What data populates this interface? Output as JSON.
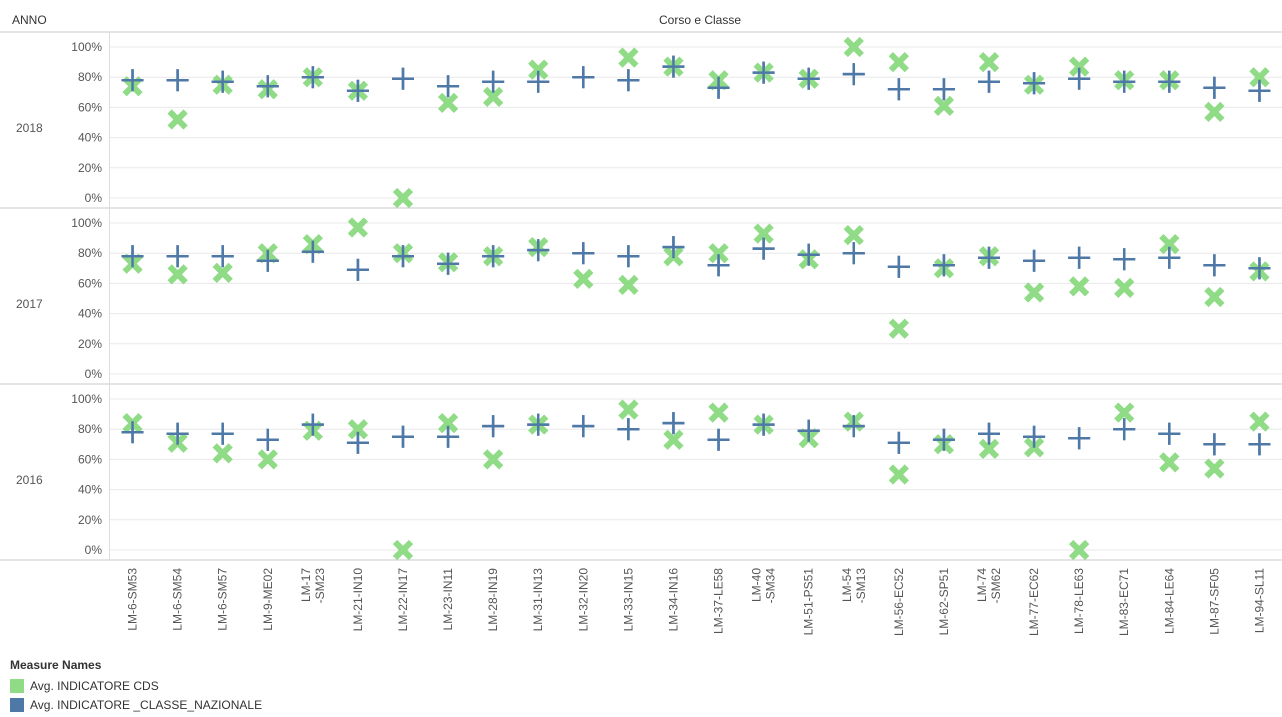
{
  "header": {
    "row_dimension_label": "ANNO",
    "column_dimension_label": "Corso e Classe"
  },
  "colors": {
    "cds": "#8fdb86",
    "classe_nazionale": "#4e79a7",
    "grid": "#e8e8e8",
    "separator": "#c9c9c9"
  },
  "legend": {
    "title": "Measure Names",
    "items": [
      {
        "label": "Avg. INDICATORE CDS",
        "color": "#8fdb86",
        "marker": "cross-x"
      },
      {
        "label": "Avg. INDICATORE _CLASSE_NAZIONALE",
        "color": "#4e79a7",
        "marker": "plus"
      }
    ]
  },
  "chart_data": {
    "type": "scatter",
    "title": "Corso e Classe",
    "row_field": "ANNO",
    "ylim": [
      0,
      100
    ],
    "yticks": [
      "0%",
      "20%",
      "40%",
      "60%",
      "80%",
      "100%"
    ],
    "ytick_values": [
      0,
      20,
      40,
      60,
      80,
      100
    ],
    "categories": [
      [
        "LM-6-SM53"
      ],
      [
        "LM-6-SM54"
      ],
      [
        "LM-6-SM57"
      ],
      [
        "LM-9-ME02"
      ],
      [
        "LM-17",
        "-SM23"
      ],
      [
        "LM-21-IN10"
      ],
      [
        "LM-22-IN17"
      ],
      [
        "LM-23-IN11"
      ],
      [
        "LM-28-IN19"
      ],
      [
        "LM-31-IN13"
      ],
      [
        "LM-32-IN20"
      ],
      [
        "LM-33-IN15"
      ],
      [
        "LM-34-IN16"
      ],
      [
        "LM-37-LE58"
      ],
      [
        "LM-40",
        "-SM34"
      ],
      [
        "LM-51-PS51"
      ],
      [
        "LM-54",
        "-SM13"
      ],
      [
        "LM-56-EC52"
      ],
      [
        "LM-62-SP51"
      ],
      [
        "LM-74",
        "-SM62"
      ],
      [
        "LM-77-EC62"
      ],
      [
        "LM-78-LE63"
      ],
      [
        "LM-83-EC71"
      ],
      [
        "LM-84-LE64"
      ],
      [
        "LM-87-SF05"
      ],
      [
        "LM-94-SL11"
      ]
    ],
    "panels": [
      {
        "year": "2018",
        "series": [
          {
            "name": "Avg. INDICATORE CDS",
            "values": [
              74,
              52,
              75,
              72,
              80,
              71,
              0,
              63,
              67,
              85,
              null,
              93,
              87,
              78,
              83,
              79,
              100,
              90,
              61,
              90,
              75,
              87,
              78,
              78,
              57,
              80
            ]
          },
          {
            "name": "Avg. INDICATORE _CLASSE_NAZIONALE",
            "values": [
              78,
              78,
              77,
              74,
              80,
              71,
              79,
              74,
              77,
              77,
              80,
              78,
              87,
              73,
              83,
              79,
              82,
              72,
              72,
              77,
              76,
              79,
              77,
              77,
              73,
              71
            ]
          }
        ]
      },
      {
        "year": "2017",
        "series": [
          {
            "name": "Avg. INDICATORE CDS",
            "values": [
              73,
              66,
              67,
              80,
              86,
              97,
              80,
              74,
              78,
              84,
              63,
              59,
              78,
              80,
              93,
              76,
              92,
              30,
              70,
              78,
              54,
              58,
              57,
              86,
              51,
              68
            ]
          },
          {
            "name": "Avg. INDICATORE _CLASSE_NAZIONALE",
            "values": [
              78,
              78,
              78,
              75,
              81,
              69,
              78,
              73,
              78,
              82,
              80,
              78,
              84,
              72,
              83,
              79,
              80,
              71,
              72,
              77,
              75,
              77,
              76,
              77,
              72,
              70
            ]
          }
        ]
      },
      {
        "year": "2016",
        "series": [
          {
            "name": "Avg. INDICATORE CDS",
            "values": [
              84,
              71,
              64,
              60,
              79,
              80,
              0,
              84,
              60,
              83,
              null,
              93,
              73,
              91,
              83,
              74,
              85,
              50,
              70,
              67,
              68,
              0,
              91,
              58,
              54,
              85
            ]
          },
          {
            "name": "Avg. INDICATORE _CLASSE_NAZIONALE",
            "values": [
              78,
              77,
              77,
              73,
              83,
              71,
              75,
              75,
              82,
              83,
              82,
              80,
              84,
              73,
              83,
              79,
              82,
              71,
              73,
              77,
              75,
              74,
              80,
              77,
              70,
              70
            ]
          }
        ]
      }
    ],
    "legend_position": "bottom-left",
    "grid": true
  }
}
